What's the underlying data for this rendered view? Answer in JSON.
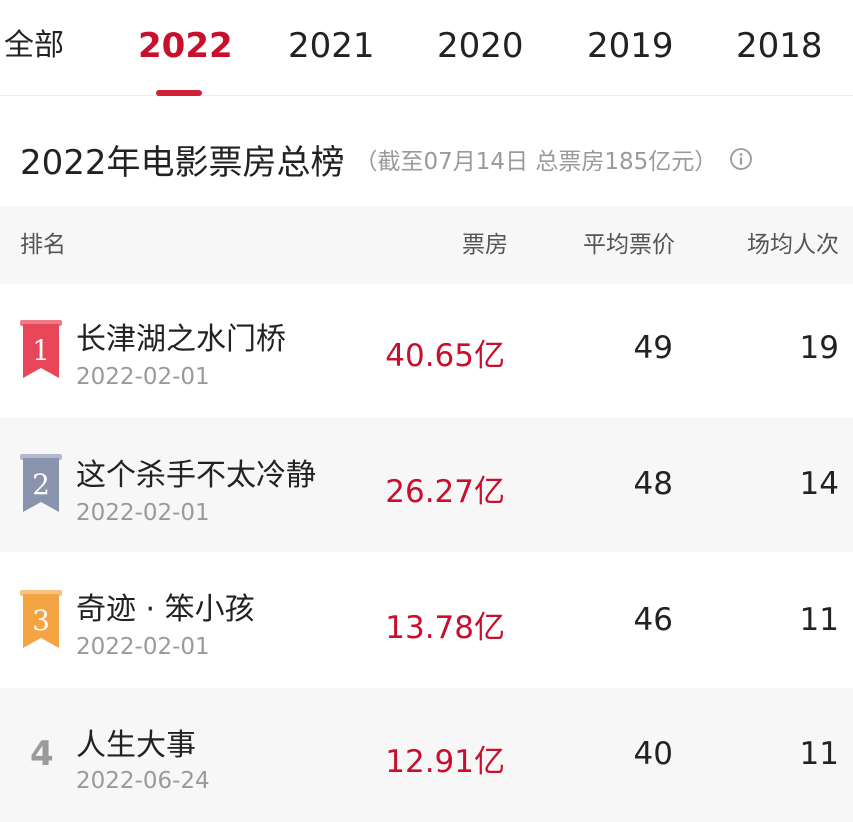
{
  "tabs": [
    {
      "label": "全部",
      "active": false
    },
    {
      "label": "2022",
      "active": true
    },
    {
      "label": "2021",
      "active": false
    },
    {
      "label": "2020",
      "active": false
    },
    {
      "label": "2019",
      "active": false
    },
    {
      "label": "2018",
      "active": false
    }
  ],
  "title": {
    "main": "2022年电影票房总榜",
    "sub": "（截至07月14日  总票房185亿元）",
    "info_icon": "info-circle-icon"
  },
  "table": {
    "headers": {
      "rank": "排名",
      "box_office": "票房",
      "avg_price": "平均票价",
      "avg_people": "场均人次"
    },
    "rows": [
      {
        "rank": "1",
        "name": "长津湖之水门桥",
        "date": "2022-02-01",
        "box_office": "40.65亿",
        "avg_price": "49",
        "avg_people": "19"
      },
      {
        "rank": "2",
        "name": "这个杀手不太冷静",
        "date": "2022-02-01",
        "box_office": "26.27亿",
        "avg_price": "48",
        "avg_people": "14"
      },
      {
        "rank": "3",
        "name": "奇迹 · 笨小孩",
        "date": "2022-02-01",
        "box_office": "13.78亿",
        "avg_price": "46",
        "avg_people": "11"
      },
      {
        "rank": "4",
        "name": "人生大事",
        "date": "2022-06-24",
        "box_office": "12.91亿",
        "avg_price": "40",
        "avg_people": "11"
      }
    ]
  },
  "colors": {
    "accent": "#c8102e",
    "rank1": "#e8475a",
    "rank2": "#8a93ad",
    "rank3": "#f5a443"
  }
}
